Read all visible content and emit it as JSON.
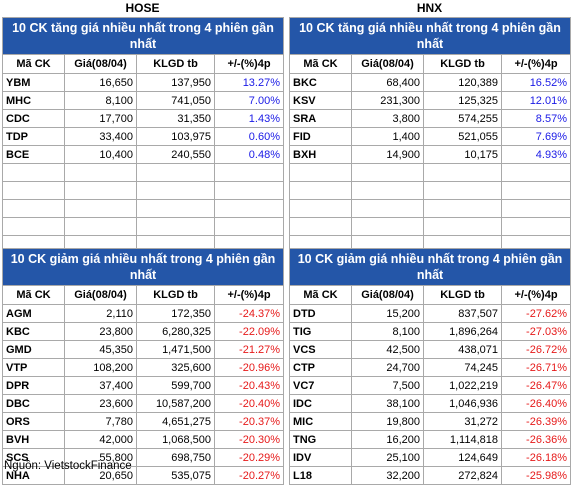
{
  "exchanges": {
    "left": "HOSE",
    "right": "HNX"
  },
  "columns": [
    "Mã CK",
    "Giá(08/04)",
    "KLGD tb",
    "+/-(%)4p"
  ],
  "panels": {
    "hose_up": {
      "title": "10 CK tăng giá nhiều nhất trong 4 phiên gần nhất",
      "rows": [
        {
          "code": "YBM",
          "price": "16,650",
          "vol": "137,950",
          "chg": "13.27%"
        },
        {
          "code": "MHC",
          "price": "8,100",
          "vol": "741,050",
          "chg": "7.00%"
        },
        {
          "code": "CDC",
          "price": "17,700",
          "vol": "31,350",
          "chg": "1.43%"
        },
        {
          "code": "TDP",
          "price": "33,400",
          "vol": "103,975",
          "chg": "0.60%"
        },
        {
          "code": "BCE",
          "price": "10,400",
          "vol": "240,550",
          "chg": "0.48%"
        }
      ]
    },
    "hnx_up": {
      "title": "10 CK tăng giá nhiều nhất trong 4 phiên gần nhất",
      "rows": [
        {
          "code": "BKC",
          "price": "68,400",
          "vol": "120,389",
          "chg": "16.52%"
        },
        {
          "code": "KSV",
          "price": "231,300",
          "vol": "125,325",
          "chg": "12.01%"
        },
        {
          "code": "SRA",
          "price": "3,800",
          "vol": "574,255",
          "chg": "8.57%"
        },
        {
          "code": "FID",
          "price": "1,400",
          "vol": "521,055",
          "chg": "7.69%"
        },
        {
          "code": "BXH",
          "price": "14,900",
          "vol": "10,175",
          "chg": "4.93%"
        }
      ]
    },
    "hose_down": {
      "title": "10 CK giảm giá nhiều nhất trong 4 phiên gần nhất",
      "rows": [
        {
          "code": "AGM",
          "price": "2,110",
          "vol": "172,350",
          "chg": "-24.37%"
        },
        {
          "code": "KBC",
          "price": "23,800",
          "vol": "6,280,325",
          "chg": "-22.09%"
        },
        {
          "code": "GMD",
          "price": "45,350",
          "vol": "1,471,500",
          "chg": "-21.27%"
        },
        {
          "code": "VTP",
          "price": "108,200",
          "vol": "325,600",
          "chg": "-20.96%"
        },
        {
          "code": "DPR",
          "price": "37,400",
          "vol": "599,700",
          "chg": "-20.43%"
        },
        {
          "code": "DBC",
          "price": "23,600",
          "vol": "10,587,200",
          "chg": "-20.40%"
        },
        {
          "code": "ORS",
          "price": "7,780",
          "vol": "4,651,275",
          "chg": "-20.37%"
        },
        {
          "code": "BVH",
          "price": "42,000",
          "vol": "1,068,500",
          "chg": "-20.30%"
        },
        {
          "code": "SCS",
          "price": "55,800",
          "vol": "698,750",
          "chg": "-20.29%"
        },
        {
          "code": "NHA",
          "price": "20,650",
          "vol": "535,075",
          "chg": "-20.27%"
        }
      ]
    },
    "hnx_down": {
      "title": "10 CK giảm giá nhiều nhất trong 4 phiên gần nhất",
      "rows": [
        {
          "code": "DTD",
          "price": "15,200",
          "vol": "837,507",
          "chg": "-27.62%"
        },
        {
          "code": "TIG",
          "price": "8,100",
          "vol": "1,896,264",
          "chg": "-27.03%"
        },
        {
          "code": "VCS",
          "price": "42,500",
          "vol": "438,071",
          "chg": "-26.72%"
        },
        {
          "code": "CTP",
          "price": "24,700",
          "vol": "74,245",
          "chg": "-26.71%"
        },
        {
          "code": "VC7",
          "price": "7,500",
          "vol": "1,022,219",
          "chg": "-26.47%"
        },
        {
          "code": "IDC",
          "price": "38,100",
          "vol": "1,046,936",
          "chg": "-26.40%"
        },
        {
          "code": "MIC",
          "price": "19,800",
          "vol": "31,272",
          "chg": "-26.39%"
        },
        {
          "code": "TNG",
          "price": "16,200",
          "vol": "1,114,818",
          "chg": "-26.36%"
        },
        {
          "code": "IDV",
          "price": "25,100",
          "vol": "124,649",
          "chg": "-26.18%"
        },
        {
          "code": "L18",
          "price": "32,200",
          "vol": "272,824",
          "chg": "-25.98%"
        }
      ]
    }
  },
  "source": "Nguồn: VietstockFinance",
  "colors": {
    "header_bg": "#2456a8",
    "up": "#1a1ae6",
    "down": "#e61a1a"
  }
}
